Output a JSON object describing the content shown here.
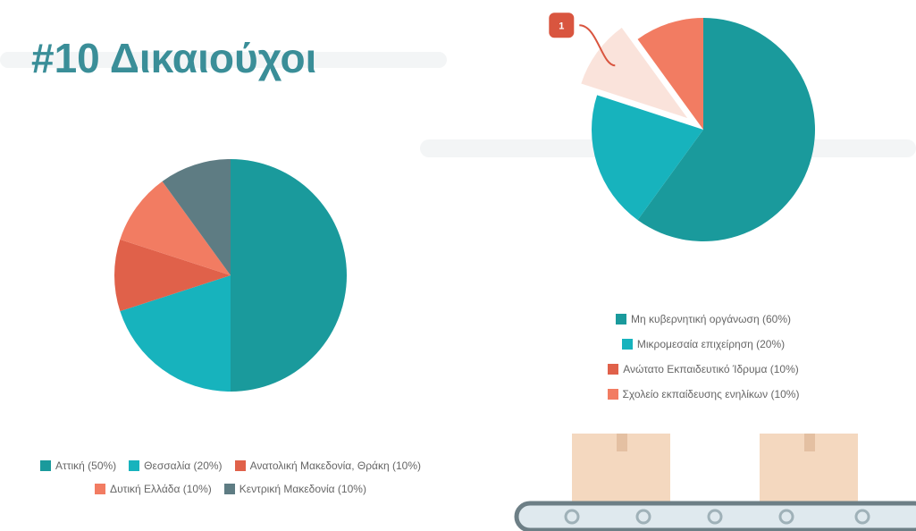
{
  "header": {
    "title": "#10 Δικαιούχοι"
  },
  "chart_data": [
    {
      "type": "pie",
      "categories": [
        "Αττική (50%)",
        "Θεσσαλία (20%)",
        "Ανατολική Μακεδονία, Θράκη (10%)",
        "Δυτική Ελλάδα (10%)",
        "Κεντρική Μακεδονία (10%)"
      ],
      "values": [
        50,
        20,
        10,
        10,
        10
      ],
      "colors": [
        "#1a9a9c",
        "#17b3bd",
        "#e0614a",
        "#f27c62",
        "#5e7c83"
      ]
    },
    {
      "type": "pie",
      "categories": [
        "Μη κυβερνητική οργάνωση (60%)",
        "Μικρομεσαία επιχείρηση (20%)",
        "Ανώτατο Εκπαιδευτικό Ίδρυμα (10%)",
        "Σχολείο εκπαίδευσης ενηλίκων (10%)"
      ],
      "values": [
        60,
        20,
        10,
        10
      ],
      "colors": [
        "#1a9a9c",
        "#17b3bd",
        "#e0614a",
        "#f27c62"
      ],
      "highlighted": 2,
      "highlight_color": "#fae3db",
      "annotation": "1"
    }
  ]
}
